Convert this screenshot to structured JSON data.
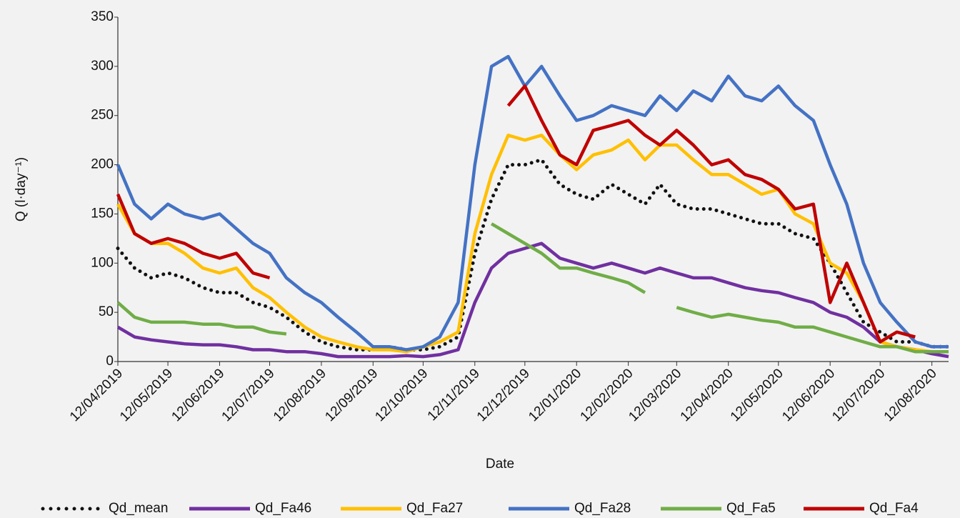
{
  "chart_data": {
    "type": "line",
    "x_label": "Date",
    "y_label": "Q (l·day⁻¹)",
    "x": [
      "12/04/2019",
      "22/04/2019",
      "02/05/2019",
      "12/05/2019",
      "22/05/2019",
      "02/06/2019",
      "12/06/2019",
      "22/06/2019",
      "02/07/2019",
      "12/07/2019",
      "22/07/2019",
      "02/08/2019",
      "12/08/2019",
      "22/08/2019",
      "02/09/2019",
      "12/09/2019",
      "22/09/2019",
      "02/10/2019",
      "12/10/2019",
      "22/10/2019",
      "02/11/2019",
      "12/11/2019",
      "22/11/2019",
      "02/12/2019",
      "12/12/2019",
      "22/12/2019",
      "02/01/2020",
      "12/01/2020",
      "22/01/2020",
      "02/02/2020",
      "12/02/2020",
      "22/02/2020",
      "02/03/2020",
      "12/03/2020",
      "22/03/2020",
      "02/04/2020",
      "12/04/2020",
      "22/04/2020",
      "02/05/2020",
      "12/05/2020",
      "22/05/2020",
      "02/06/2020",
      "12/06/2020",
      "22/06/2020",
      "02/07/2020",
      "12/07/2020",
      "22/07/2020",
      "02/08/2020",
      "12/08/2020",
      "22/08/2020"
    ],
    "xlim": [
      "12/04/2019",
      "22/08/2020"
    ],
    "xticks": [
      "12/04/2019",
      "12/05/2019",
      "12/06/2019",
      "12/07/2019",
      "12/08/2019",
      "12/09/2019",
      "12/10/2019",
      "12/11/2019",
      "12/12/2019",
      "12/01/2020",
      "12/02/2020",
      "12/03/2020",
      "12/04/2020",
      "12/05/2020",
      "12/06/2020",
      "12/07/2020",
      "12/08/2020"
    ],
    "ylim": [
      0,
      350
    ],
    "yticks": [
      0,
      50,
      100,
      150,
      200,
      250,
      300,
      350
    ],
    "series": [
      {
        "name": "Qd_mean",
        "color": "#111111",
        "dotted": true,
        "values": [
          115,
          95,
          85,
          90,
          85,
          75,
          70,
          70,
          60,
          55,
          45,
          30,
          20,
          15,
          12,
          12,
          15,
          12,
          12,
          15,
          25,
          110,
          165,
          200,
          200,
          205,
          180,
          170,
          165,
          180,
          170,
          160,
          180,
          160,
          155,
          155,
          150,
          145,
          140,
          140,
          130,
          125,
          100,
          70,
          40,
          30,
          20,
          20,
          15,
          15
        ]
      },
      {
        "name": "Qd_Fa46",
        "color": "#7030a0",
        "values": [
          35,
          25,
          22,
          20,
          18,
          17,
          17,
          15,
          12,
          12,
          10,
          10,
          8,
          5,
          5,
          5,
          5,
          6,
          5,
          7,
          12,
          60,
          95,
          110,
          115,
          120,
          105,
          100,
          95,
          100,
          95,
          90,
          95,
          90,
          85,
          85,
          80,
          75,
          72,
          70,
          65,
          60,
          50,
          45,
          35,
          20,
          15,
          12,
          8,
          5
        ]
      },
      {
        "name": "Qd_Fa27",
        "color": "#ffc000",
        "values": [
          160,
          130,
          120,
          120,
          110,
          95,
          90,
          95,
          75,
          65,
          50,
          35,
          25,
          20,
          15,
          12,
          12,
          10,
          15,
          20,
          30,
          130,
          190,
          230,
          225,
          230,
          210,
          195,
          210,
          215,
          225,
          205,
          220,
          220,
          205,
          190,
          190,
          180,
          170,
          175,
          150,
          140,
          100,
          90,
          60,
          20,
          15,
          12,
          10,
          10
        ]
      },
      {
        "name": "Qd_Fa28",
        "color": "#4472c4",
        "values": [
          200,
          160,
          145,
          160,
          150,
          145,
          150,
          135,
          120,
          110,
          85,
          70,
          60,
          45,
          30,
          15,
          15,
          12,
          15,
          25,
          60,
          200,
          300,
          310,
          280,
          300,
          270,
          245,
          250,
          260,
          255,
          250,
          270,
          255,
          275,
          265,
          290,
          270,
          265,
          280,
          260,
          245,
          200,
          160,
          100,
          60,
          40,
          20,
          15,
          15
        ]
      },
      {
        "name": "Qd_Fa5",
        "color": "#70ad47",
        "values": [
          60,
          45,
          40,
          40,
          40,
          38,
          38,
          35,
          35,
          30,
          28,
          null,
          null,
          null,
          null,
          null,
          null,
          null,
          null,
          null,
          null,
          null,
          140,
          130,
          120,
          110,
          95,
          95,
          90,
          85,
          80,
          70,
          null,
          55,
          50,
          45,
          48,
          45,
          42,
          40,
          35,
          35,
          30,
          25,
          20,
          15,
          15,
          10,
          10,
          10
        ]
      },
      {
        "name": "Qd_Fa4",
        "color": "#c00000",
        "values": [
          170,
          130,
          120,
          125,
          120,
          110,
          105,
          110,
          90,
          85,
          null,
          null,
          null,
          null,
          null,
          null,
          null,
          null,
          null,
          null,
          null,
          null,
          null,
          260,
          280,
          245,
          210,
          200,
          235,
          240,
          245,
          230,
          220,
          235,
          220,
          200,
          205,
          190,
          185,
          175,
          155,
          160,
          60,
          100,
          60,
          20,
          30,
          25,
          null,
          null
        ]
      }
    ]
  }
}
